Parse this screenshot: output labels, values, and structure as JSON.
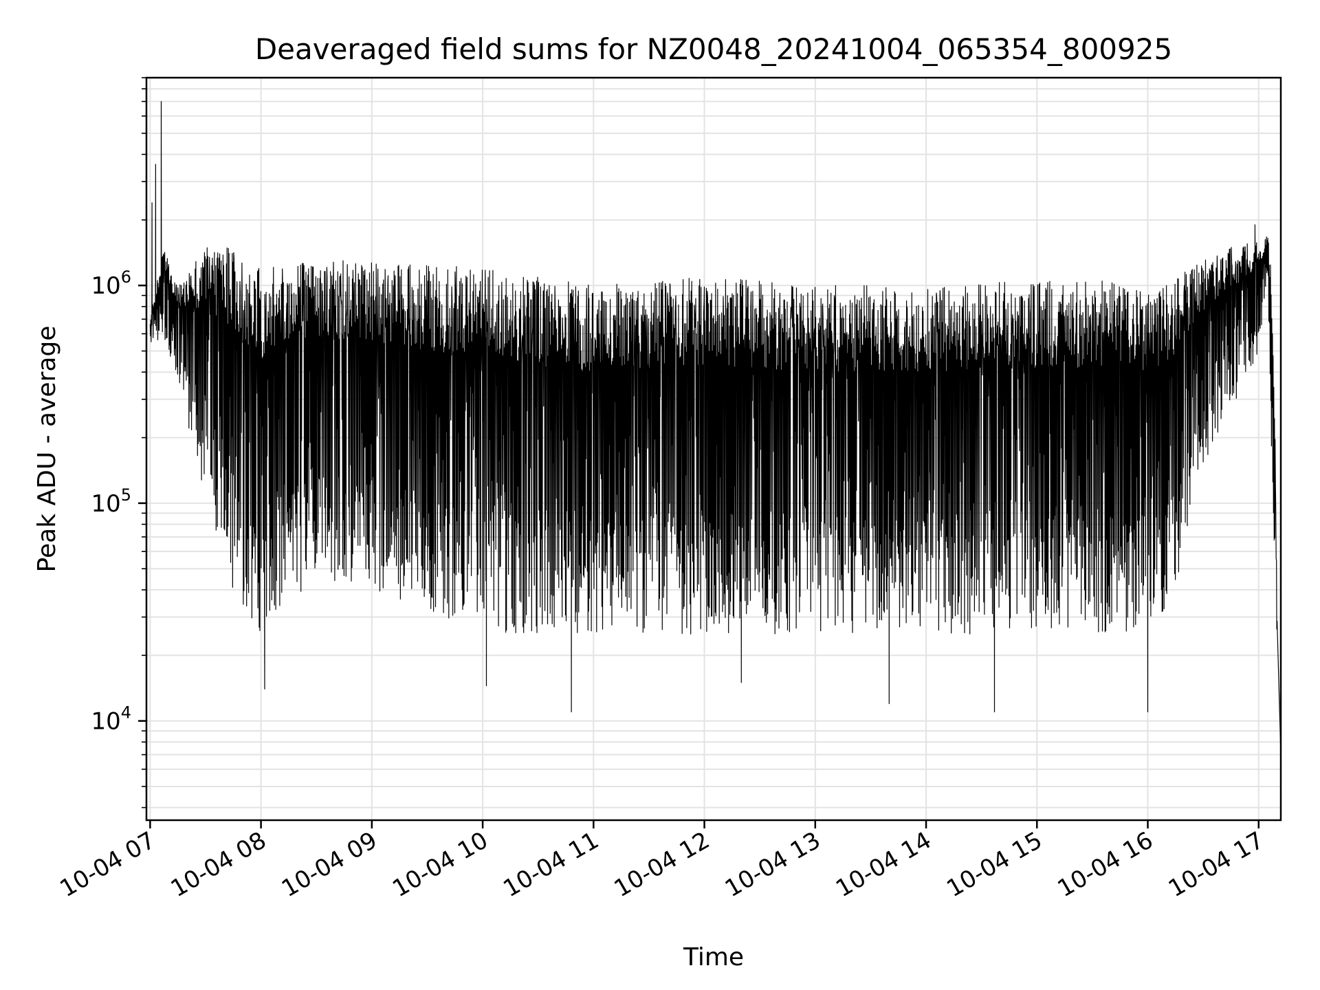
{
  "chart_data": {
    "type": "line",
    "title": "Deaveraged field sums for NZ0048_20241004_065354_800925",
    "xlabel": "Time",
    "ylabel": "Peak ADU - average",
    "yscale": "log",
    "ylim": [
      3500,
      9000000
    ],
    "xlim": [
      "2024-10-04 06:58",
      "2024-10-04 17:12"
    ],
    "grid": true,
    "x_ticks": [
      "10-04 07",
      "10-04 08",
      "10-04 09",
      "10-04 10",
      "10-04 11",
      "10-04 12",
      "10-04 13",
      "10-04 14",
      "10-04 15",
      "10-04 16",
      "10-04 17"
    ],
    "y_ticks": [
      {
        "value": 10000,
        "base": "10",
        "exp": "4"
      },
      {
        "value": 100000,
        "base": "10",
        "exp": "5"
      },
      {
        "value": 1000000,
        "base": "10",
        "exp": "6"
      }
    ],
    "series": [
      {
        "color": "#000000",
        "envelope": {
          "time": [
            "2024-10-04 07:00",
            "2024-10-04 07:07",
            "2024-10-04 07:15",
            "2024-10-04 07:30",
            "2024-10-04 07:45",
            "2024-10-04 08:00",
            "2024-10-04 08:30",
            "2024-10-04 09:00",
            "2024-10-04 10:00",
            "2024-10-04 11:00",
            "2024-10-04 12:00",
            "2024-10-04 13:00",
            "2024-10-04 14:00",
            "2024-10-04 15:00",
            "2024-10-04 15:45",
            "2024-10-04 16:00",
            "2024-10-04 16:10",
            "2024-10-04 16:20",
            "2024-10-04 16:30",
            "2024-10-04 16:45",
            "2024-10-04 17:00",
            "2024-10-04 17:05",
            "2024-10-04 17:08",
            "2024-10-04 17:10"
          ],
          "upper": [
            700000,
            1500000,
            1000000,
            1500000,
            1500000,
            1200000,
            1300000,
            1300000,
            1200000,
            1000000,
            1100000,
            1000000,
            1000000,
            1050000,
            1050000,
            1000000,
            1000000,
            1200000,
            1300000,
            1500000,
            1600000,
            1700000,
            1000000,
            30000
          ],
          "lower": [
            500000,
            600000,
            350000,
            100000,
            40000,
            25000,
            40000,
            40000,
            25000,
            25000,
            25000,
            25000,
            25000,
            25000,
            25000,
            25000,
            30000,
            60000,
            150000,
            250000,
            500000,
            1200000,
            30000,
            25000
          ]
        },
        "peaks": [
          {
            "time": "2024-10-04 07:06",
            "value": 7000000
          },
          {
            "time": "2024-10-04 07:03",
            "value": 3600000
          },
          {
            "time": "2024-10-04 07:01",
            "value": 2400000
          },
          {
            "time": "2024-10-04 16:58",
            "value": 1900000
          }
        ],
        "troughs": [
          {
            "time": "2024-10-04 08:02",
            "value": 14000
          },
          {
            "time": "2024-10-04 10:02",
            "value": 14500
          },
          {
            "time": "2024-10-04 10:48",
            "value": 11000
          },
          {
            "time": "2024-10-04 12:20",
            "value": 15000
          },
          {
            "time": "2024-10-04 13:40",
            "value": 12000
          },
          {
            "time": "2024-10-04 14:37",
            "value": 11000
          },
          {
            "time": "2024-10-04 16:00",
            "value": 11000
          },
          {
            "time": "2024-10-04 17:12",
            "value": 7000
          }
        ]
      }
    ]
  }
}
